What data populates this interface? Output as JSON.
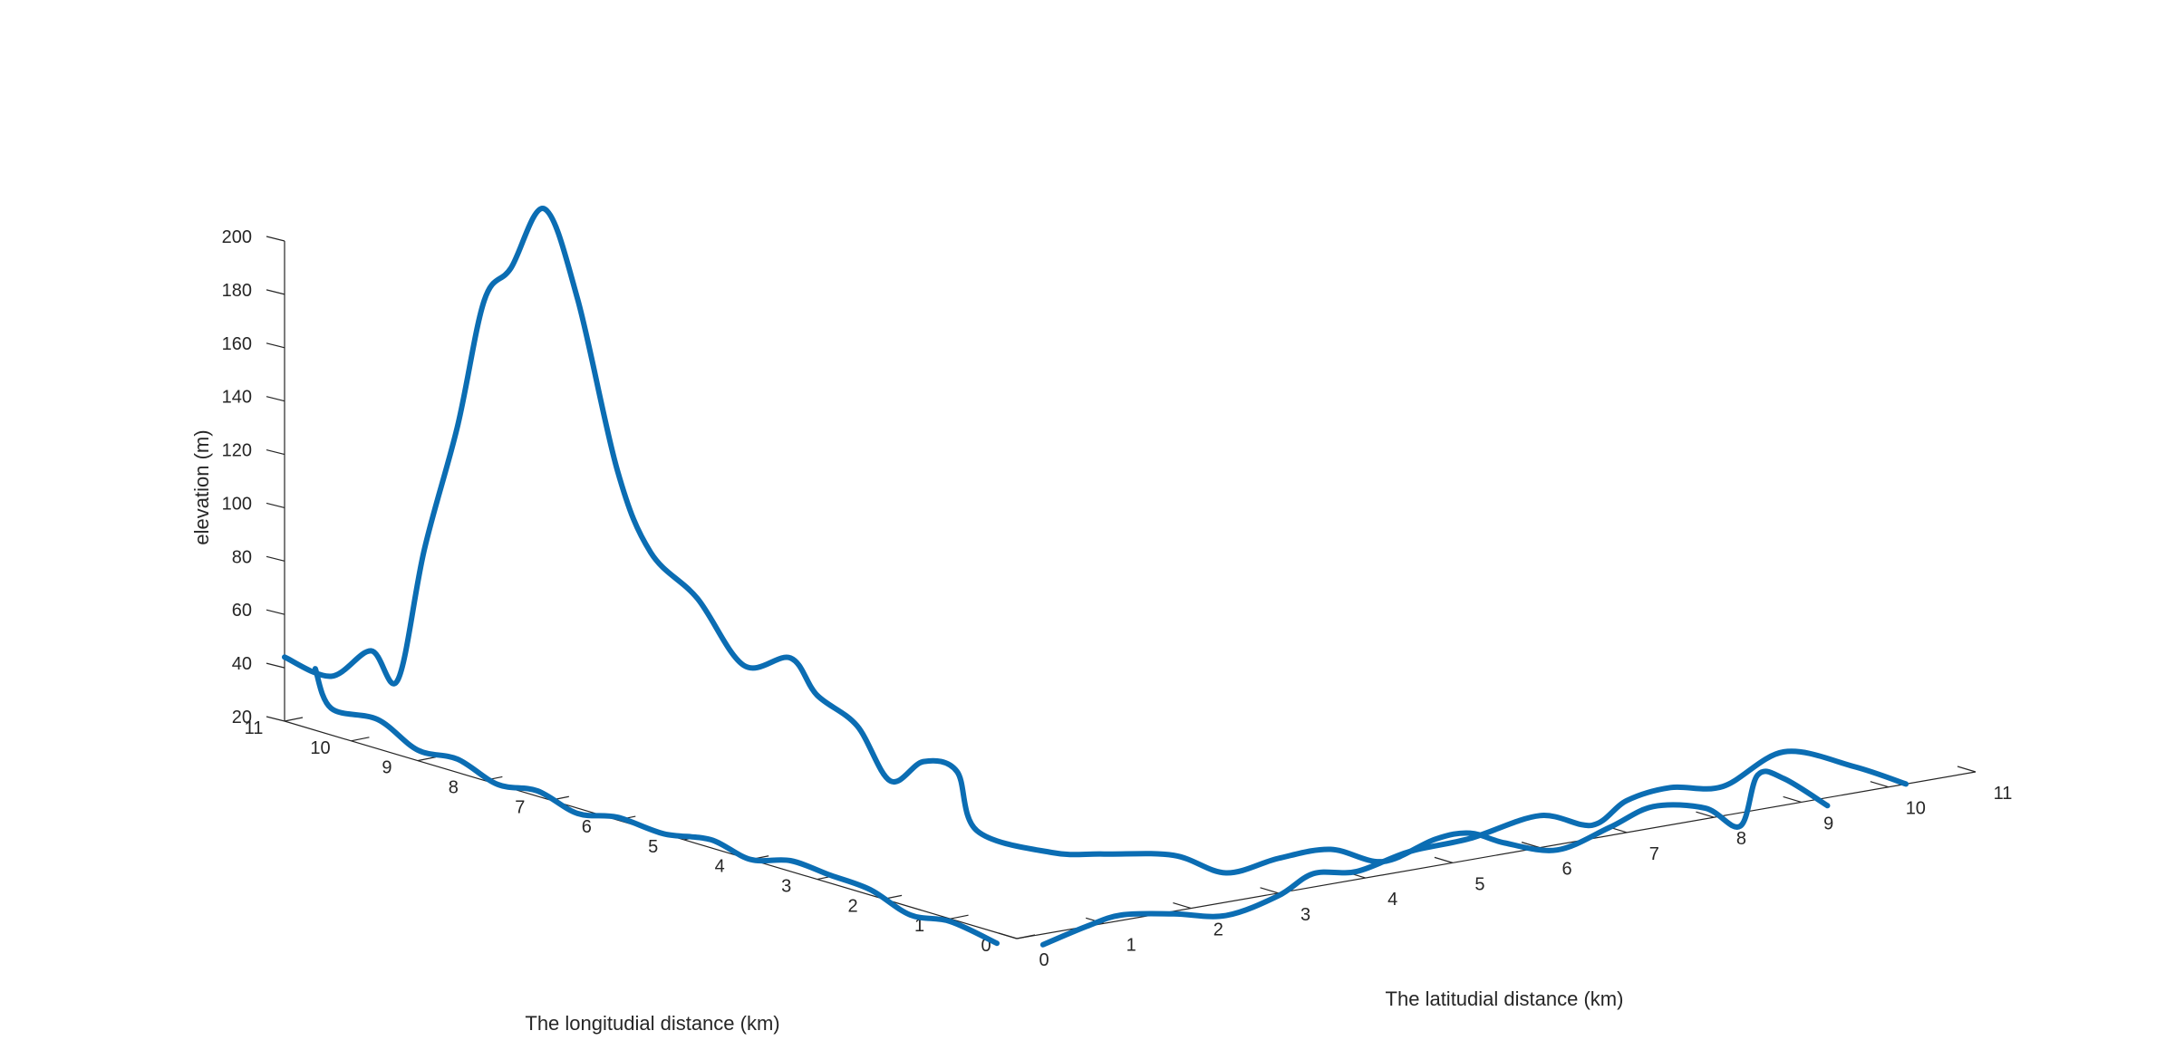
{
  "chart_data": {
    "type": "line",
    "projection": "3d",
    "title": "",
    "xlabel": "The longitudial distance (km)",
    "ylabel": "The latitudial distance (km)",
    "zlabel": "elevation (m)",
    "xlim": [
      0,
      11
    ],
    "ylim": [
      0,
      11
    ],
    "zlim": [
      20,
      200
    ],
    "x_ticks": [
      0,
      1,
      2,
      3,
      4,
      5,
      6,
      7,
      8,
      9,
      10,
      11
    ],
    "y_ticks": [
      0,
      1,
      2,
      3,
      4,
      5,
      6,
      7,
      8,
      9,
      10,
      11
    ],
    "z_ticks": [
      20,
      40,
      60,
      80,
      100,
      120,
      140,
      160,
      180,
      200
    ],
    "grid": false,
    "color": "#0b6db3",
    "series": [
      {
        "segments": [
          {
            "part": "ground trace along longitudinal axis",
            "points": [
              [
                10.8,
                0.2,
                40
              ],
              [
                10.3,
                0.0,
                30
              ],
              [
                9.6,
                0.0,
                31
              ],
              [
                9.0,
                0.0,
                24
              ],
              [
                8.4,
                0.0,
                25
              ],
              [
                7.8,
                0.0,
                20
              ],
              [
                7.2,
                0.0,
                22
              ],
              [
                6.6,
                0.0,
                18
              ],
              [
                6.0,
                0.0,
                21
              ],
              [
                5.3,
                0.0,
                20
              ],
              [
                4.6,
                0.0,
                23
              ],
              [
                4.0,
                0.0,
                20
              ],
              [
                3.4,
                0.0,
                24
              ],
              [
                2.8,
                0.0,
                23
              ],
              [
                2.2,
                0.0,
                22
              ],
              [
                1.6,
                0.0,
                17
              ],
              [
                1.0,
                0.0,
                19
              ],
              [
                0.3,
                0.0,
                16
              ]
            ]
          },
          {
            "part": "ground trace along latitudinal axis",
            "points": [
              [
                0.0,
                0.3,
                16
              ],
              [
                0.0,
                0.8,
                20
              ],
              [
                0.0,
                1.2,
                22
              ],
              [
                0.0,
                1.8,
                19
              ],
              [
                0.0,
                2.4,
                15
              ],
              [
                0.0,
                3.0,
                19
              ],
              [
                0.0,
                3.4,
                25
              ],
              [
                0.0,
                3.9,
                23
              ],
              [
                0.0,
                4.5,
                27
              ],
              [
                0.0,
                5.2,
                28
              ],
              [
                0.0,
                6.0,
                32
              ],
              [
                0.0,
                6.6,
                25
              ],
              [
                0.0,
                7.0,
                32
              ],
              [
                0.0,
                7.5,
                34
              ],
              [
                0.0,
                8.1,
                31
              ],
              [
                0.0,
                8.8,
                40
              ],
              [
                0.0,
                9.6,
                30
              ],
              [
                0.0,
                10.2,
                20
              ]
            ]
          },
          {
            "part": "elevation profile",
            "points": [
              [
                11.0,
                0.0,
                44
              ],
              [
                10.3,
                0.0,
                42
              ],
              [
                9.7,
                0.0,
                56
              ],
              [
                9.3,
                0.0,
                48
              ],
              [
                8.9,
                0.0,
                100
              ],
              [
                8.4,
                0.0,
                150
              ],
              [
                8.0,
                0.0,
                200
              ],
              [
                7.6,
                0.0,
                215
              ],
              [
                7.1,
                0.0,
                241
              ],
              [
                6.6,
                0.0,
                211
              ],
              [
                6.0,
                0.0,
                151
              ],
              [
                5.5,
                0.0,
                124
              ],
              [
                4.8,
                0.0,
                112
              ],
              [
                4.1,
                0.0,
                92
              ],
              [
                3.4,
                0.0,
                100
              ],
              [
                3.0,
                0.0,
                89
              ],
              [
                2.4,
                0.0,
                82
              ],
              [
                1.9,
                0.0,
                65
              ],
              [
                1.4,
                0.0,
                76
              ],
              [
                0.9,
                0.0,
                76
              ],
              [
                0.6,
                0.0,
                56
              ],
              [
                0.0,
                0.4,
                50
              ],
              [
                0.0,
                1.0,
                46
              ],
              [
                0.0,
                1.8,
                41
              ],
              [
                0.0,
                2.4,
                31
              ],
              [
                0.0,
                3.0,
                33
              ],
              [
                0.0,
                3.6,
                33
              ],
              [
                0.0,
                4.2,
                25
              ],
              [
                0.0,
                4.8,
                30
              ],
              [
                0.0,
                5.2,
                30
              ],
              [
                0.0,
                5.6,
                24
              ],
              [
                0.0,
                6.2,
                18
              ],
              [
                0.0,
                6.8,
                23
              ],
              [
                0.0,
                7.3,
                28
              ],
              [
                0.0,
                7.9,
                24
              ],
              [
                0.0,
                8.3,
                15
              ],
              [
                0.0,
                8.5,
                33
              ],
              [
                0.0,
                8.8,
                30
              ],
              [
                0.0,
                9.3,
                17
              ]
            ]
          }
        ]
      }
    ]
  }
}
